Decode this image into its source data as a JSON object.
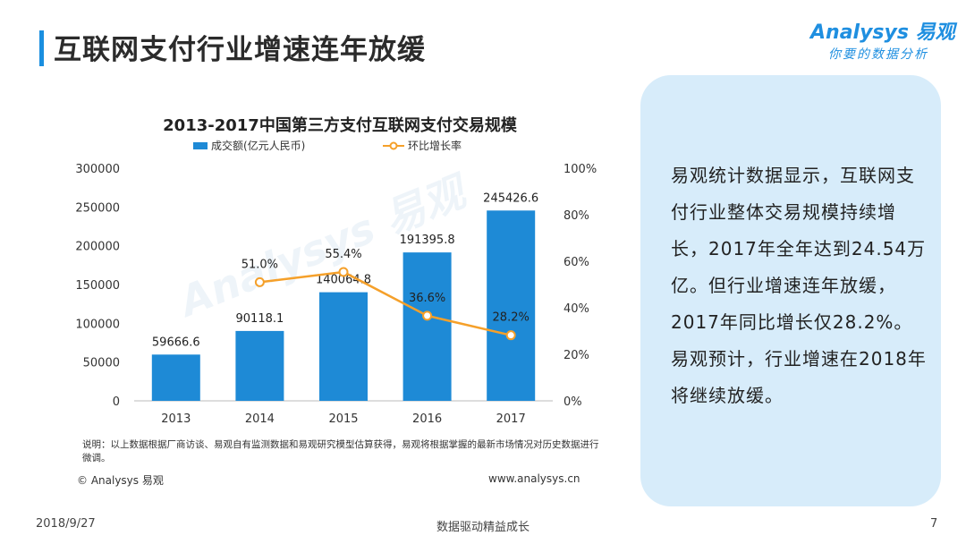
{
  "page": {
    "title": "互联网支付行业增速连年放缓",
    "logo_main": "Analysys 易观",
    "logo_sub": "你要的数据分析",
    "watermark": "Analysys 易观",
    "note": "说明：以上数据根据厂商访谈、易观自有监测数据和易观研究模型估算获得，易观将根据掌握的最新市场情况对历史数据进行微调。",
    "copyright": "© Analysys 易观",
    "website": "www.analysys.cn",
    "side_text": "易观统计数据显示，互联网支付行业整体交易规模持续增长，2017年全年达到24.54万亿。但行业增速连年放缓，2017年同比增长仅28.2%。易观预计，行业增速在2018年将继续放缓。",
    "footer_date": "2018/9/27",
    "footer_center": "数据驱动精益成长",
    "footer_page": "7"
  },
  "colors": {
    "bar": "#1e8ad6",
    "line": "#f5a02a",
    "panel": "#d7ecfa",
    "accent": "#1a8fe0"
  },
  "chart_data": {
    "type": "bar",
    "title": "2013-2017中国第三方支付互联网支付交易规模",
    "categories": [
      "2013",
      "2014",
      "2015",
      "2016",
      "2017"
    ],
    "series": [
      {
        "name": "成交额(亿元人民币)",
        "type": "bar",
        "axis": "left",
        "values": [
          59666.6,
          90118.1,
          140064.8,
          191395.8,
          245426.6
        ],
        "labels": [
          "59666.6",
          "90118.1",
          "140064.8",
          "191395.8",
          "245426.6"
        ]
      },
      {
        "name": "环比增长率",
        "type": "line",
        "axis": "right",
        "values": [
          null,
          51.0,
          55.4,
          36.6,
          28.2
        ],
        "labels": [
          "",
          "51.0%",
          "55.4%",
          "36.6%",
          "28.2%"
        ]
      }
    ],
    "y_left": {
      "min": 0,
      "max": 300000,
      "ticks": [
        "0",
        "50000",
        "100000",
        "150000",
        "200000",
        "250000",
        "300000"
      ]
    },
    "y_right": {
      "min": 0,
      "max": 100,
      "ticks": [
        "0%",
        "20%",
        "40%",
        "60%",
        "80%",
        "100%"
      ]
    },
    "legend_position": "top-center",
    "grid": false
  }
}
